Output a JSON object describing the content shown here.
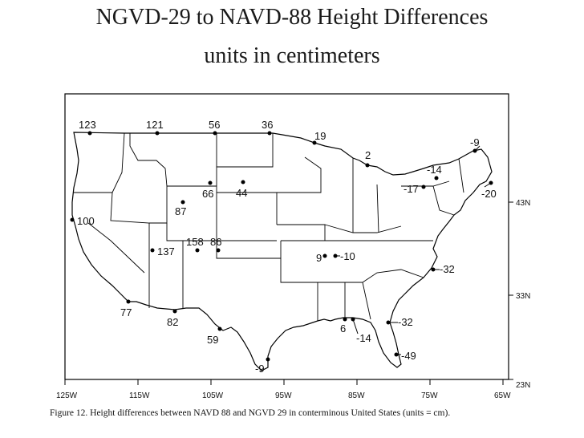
{
  "title": "NGVD-29 to NAVD-88 Height Differences",
  "subtitle": "units in centimeters",
  "x_ticks": [
    "125W",
    "115W",
    "105W",
    "95W",
    "85W",
    "75W",
    "65W"
  ],
  "y_ticks": [
    "43N",
    "33N",
    "23N"
  ],
  "caption": "Figure 12. Height differences between NAVD 88 and NGVD 29 in conterminous United States (units = cm).",
  "points": [
    {
      "label": "123"
    },
    {
      "label": "121"
    },
    {
      "label": "56"
    },
    {
      "label": "36"
    },
    {
      "label": "19"
    },
    {
      "label": "2"
    },
    {
      "label": "-9"
    },
    {
      "label": "-14"
    },
    {
      "label": "-17"
    },
    {
      "label": "-20"
    },
    {
      "label": "66"
    },
    {
      "label": "44"
    },
    {
      "label": "87"
    },
    {
      "label": "100"
    },
    {
      "label": "158"
    },
    {
      "label": "86"
    },
    {
      "label": "137"
    },
    {
      "label": "9"
    },
    {
      "label": "-10"
    },
    {
      "label": "-32"
    },
    {
      "label": "77"
    },
    {
      "label": "82"
    },
    {
      "label": "59"
    },
    {
      "label": "6"
    },
    {
      "label": "-14"
    },
    {
      "label": "-32"
    },
    {
      "label": "-49"
    },
    {
      "label": "-9"
    }
  ]
}
